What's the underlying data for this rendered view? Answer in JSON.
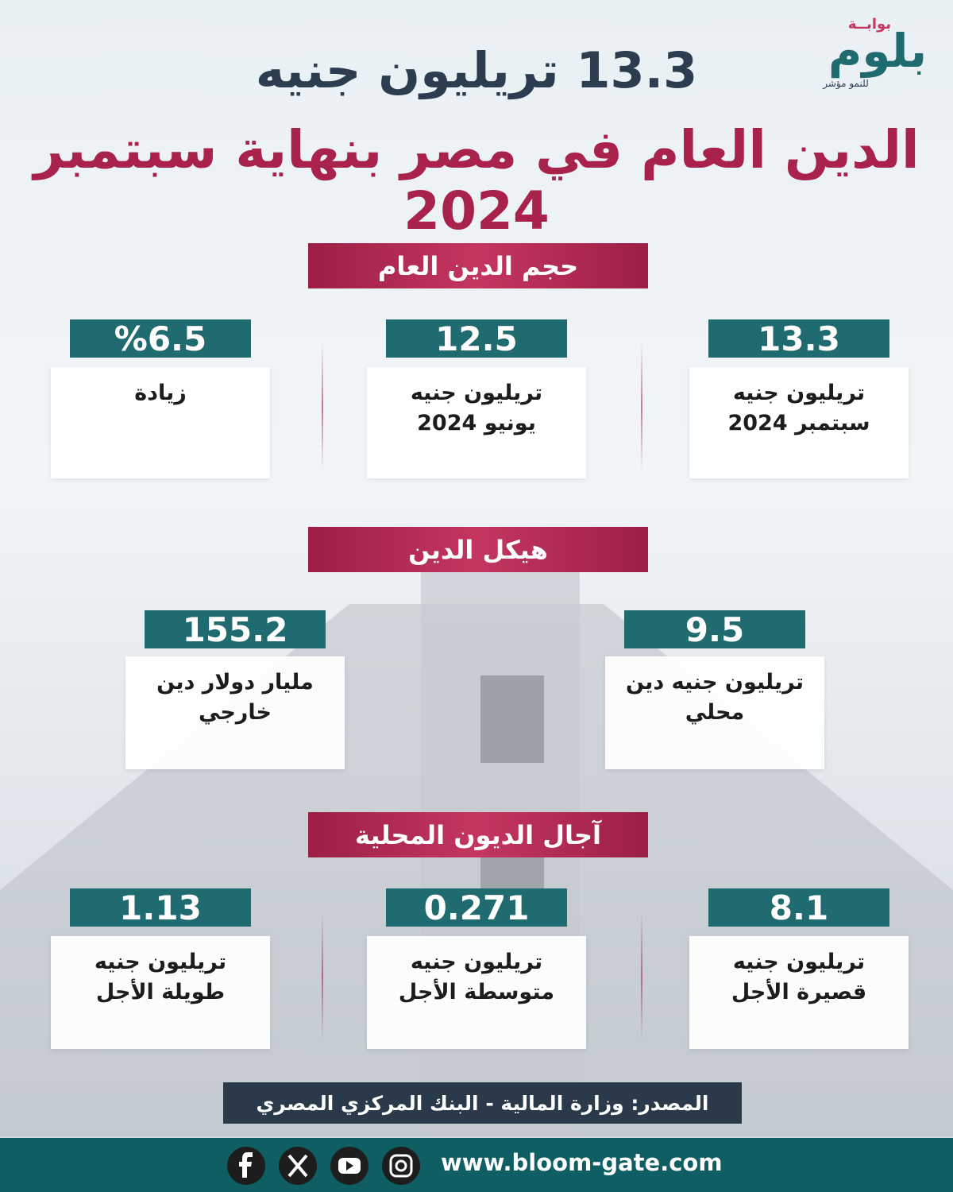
{
  "logo": {
    "top": "بوابــة",
    "main": "بلوم",
    "tagline": "للنمو مؤشر"
  },
  "title": {
    "line1": "13.3 تريليون جنيه",
    "line2": "الدين العام في مصر بنهاية سبتمبر 2024"
  },
  "sections": [
    {
      "heading": "حجم الدين العام",
      "cards": [
        {
          "value": "13.3",
          "lines": [
            "تريليون جنيه",
            "سبتمبر 2024"
          ]
        },
        {
          "value": "12.5",
          "lines": [
            "تريليون جنيه",
            "يونيو 2024"
          ]
        },
        {
          "value": "%6.5",
          "lines": [
            "زيادة"
          ]
        }
      ]
    },
    {
      "heading": "هيكل الدين",
      "cards": [
        {
          "value": "9.5",
          "lines": [
            "تريليون جنيه دين",
            "محلي"
          ]
        },
        {
          "value": "155.2",
          "lines": [
            "مليار دولار دين",
            "خارجي"
          ]
        }
      ]
    },
    {
      "heading": "آجال الديون المحلية",
      "cards": [
        {
          "value": "8.1",
          "lines": [
            "تريليون جنيه",
            "قصيرة الأجل"
          ]
        },
        {
          "value": "0.271",
          "lines": [
            "تريليون جنيه",
            "متوسطة الأجل"
          ]
        },
        {
          "value": "1.13",
          "lines": [
            "تريليون جنيه",
            "طويلة الأجل"
          ]
        }
      ]
    }
  ],
  "source": "المصدر: وزارة المالية - البنك المركزي المصري",
  "footer": {
    "url": "www.bloom-gate.com"
  }
}
